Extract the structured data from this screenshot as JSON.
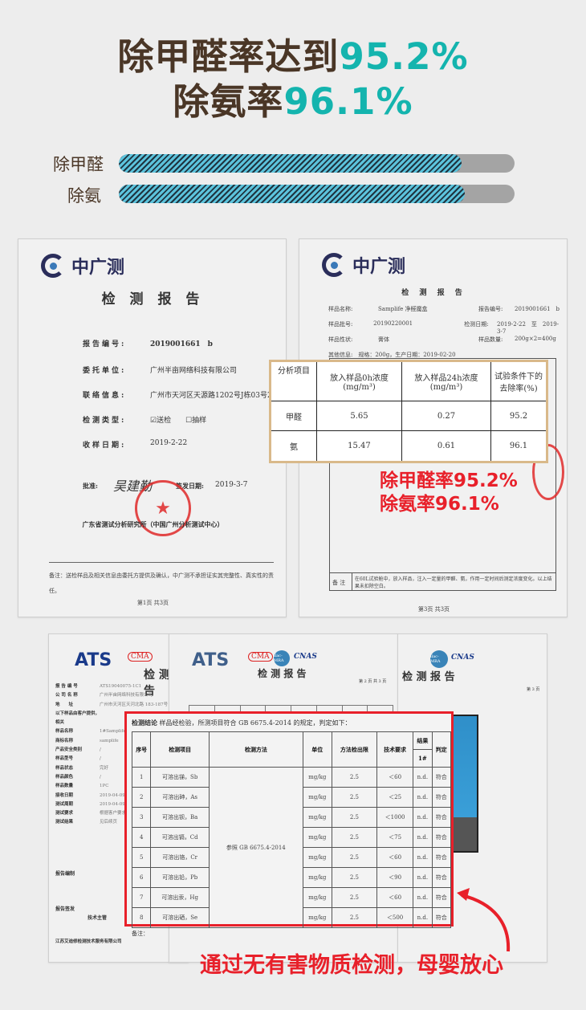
{
  "headline": {
    "line1_prefix": "除甲醛率达到",
    "line1_value": "95.2%",
    "line2_prefix": "除氨率",
    "line2_value": "96.1%"
  },
  "colors": {
    "brown": "#4a3626",
    "teal": "#14b4ae",
    "red": "#e8202a",
    "bar_stripe": "#5cc3dc",
    "bar_track": "#a4a4a4"
  },
  "bars": [
    {
      "label": "除甲醛",
      "percent": 95.2
    },
    {
      "label": "除氨",
      "percent": 96.1
    }
  ],
  "report1": {
    "logo_text": "中广测",
    "title": "检 测 报 告",
    "fields": [
      {
        "k": "报告编号:",
        "v": "2019001661　b"
      },
      {
        "k": "委托单位:",
        "v": "广州半亩网络科技有限公司"
      },
      {
        "k": "联络信息:",
        "v": "广州市天河区天源路1202号J栋03号2526"
      },
      {
        "k": "检测类型:",
        "v": "☑送检　　☐抽样"
      },
      {
        "k": "收样日期:",
        "v": "2019-2-22"
      }
    ],
    "approve_label": "批准:",
    "signature": "吴建勤",
    "issue_label": "签发日期:",
    "issue_date": "2019-3-7",
    "org": "广东省测试分析研究所（中国广州分析测试中心）",
    "note": "备注：送检样品及相关信息由委托方提供及确认，中广测不承担证实其完整性、真实性的责任。",
    "page": "第1页 共3页"
  },
  "report3": {
    "logo_text": "中广测",
    "title": "检 测 报 告",
    "info": [
      [
        "样品名称:",
        "Samplife 净醛魔盒",
        "报告编号:",
        "2019001661　b"
      ],
      [
        "样品批号:",
        "20190220001",
        "检测日期:",
        "2019-2-22　至　2019-3-7"
      ],
      [
        "样品性状:",
        "膏体",
        "样品数量:",
        "200g×2=400g"
      ]
    ],
    "other": "其他信息:　规格：200g，生产日期：2019-02-20",
    "note_label": "备 注",
    "note": "在60L试验舱中，放入样品，注入一定量的甲醛、氨，作用一定时间后测定浓度变化。以上结果未扣除空白。",
    "page": "第3页 共3页"
  },
  "overlay_table": {
    "headers": [
      "分析项目",
      "放入样品0h浓度 (mg/m³)",
      "放入样品24h浓度 (mg/m³)",
      "试验条件下的去除率(%)"
    ],
    "rows": [
      [
        "甲醛",
        "5.65",
        "0.27",
        "95.2"
      ],
      [
        "氨",
        "15.47",
        "0.61",
        "96.1"
      ]
    ]
  },
  "callout1": {
    "line1": "除甲醛率95.2%",
    "line2": "除氨率96.1%"
  },
  "bottom_docs": {
    "logo1": "ATS",
    "logo2": "ATS",
    "cma": "CMA",
    "ilac": "ilac-MRA",
    "cnas": "CNAS",
    "title": "检 测 报 告",
    "page2": "第 2 页 共 3 页",
    "page3": "第 3 页",
    "left_fields": [
      "报 告 编 号",
      "公 司 名 称",
      "地　　址",
      "以下样品由客户提供，相关",
      "样品名称",
      "商标名称",
      "产品安全类别",
      "样品型号",
      "样品状态",
      "样品颜色",
      "样品数量",
      "接收日期",
      "测试周期",
      "测试要求",
      "测试结果"
    ],
    "left_values": [
      "ATS19040075-1C1",
      "广州半亩网络科技有限公司",
      "广州市天河区天河北路 183-187号",
      "",
      "1#Samplife",
      "samplife",
      "/",
      "/",
      "完好",
      "/",
      "1PC",
      "2019-04-09",
      "2019-04-09",
      "根据客户要求",
      "见后续页"
    ],
    "compiled": "报告编制",
    "issued": "报告签发",
    "tech": "技术主管",
    "company": "江苏艾迪修检测技术服务有限公司"
  },
  "main_table": {
    "conclusion_label": "检测结论",
    "conclusion": "样品经检验，所测项目符合 GB 6675.4-2014 的规定，判定如下：",
    "headers": [
      "序号",
      "检测项目",
      "检测方法",
      "单位",
      "方法检出限",
      "技术要求",
      "结果",
      "判定"
    ],
    "sub_header": "1#",
    "method": "参照 GB 6675.4-2014",
    "rows": [
      [
        "1",
        "可溶出锑，Sb",
        "mg/kg",
        "2.5",
        "＜60",
        "n.d.",
        "符合"
      ],
      [
        "2",
        "可溶出砷，As",
        "mg/kg",
        "2.5",
        "＜25",
        "n.d.",
        "符合"
      ],
      [
        "3",
        "可溶出钡，Ba",
        "mg/kg",
        "2.5",
        "＜1000",
        "n.d.",
        "符合"
      ],
      [
        "4",
        "可溶出镉，Cd",
        "mg/kg",
        "2.5",
        "＜75",
        "n.d.",
        "符合"
      ],
      [
        "5",
        "可溶出铬，Cr",
        "mg/kg",
        "2.5",
        "＜60",
        "n.d.",
        "符合"
      ],
      [
        "6",
        "可溶出铅，Pb",
        "mg/kg",
        "2.5",
        "＜90",
        "n.d.",
        "符合"
      ],
      [
        "7",
        "可溶出汞，Hg",
        "mg/kg",
        "2.5",
        "＜60",
        "n.d.",
        "符合"
      ],
      [
        "8",
        "可溶出硒，Se",
        "mg/kg",
        "2.5",
        "＜500",
        "n.d.",
        "符合"
      ]
    ],
    "remark": "备注："
  },
  "caption": "通过无有害物质检测，母婴放心"
}
